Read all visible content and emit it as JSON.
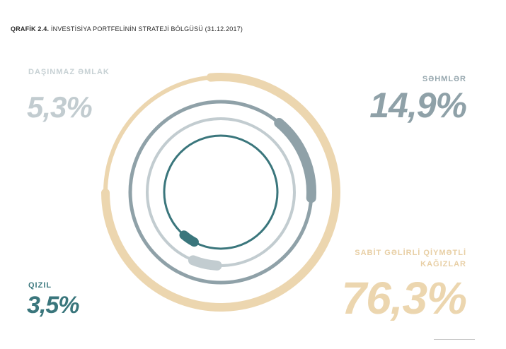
{
  "title": {
    "prefix": "QRAFİK 2.4.",
    "text": "İNVESTİSİYA PORTFELİNİN STRATEJİ BÖLGÜSÜ (31.12.2017)"
  },
  "chart_data": {
    "type": "radial-bar",
    "title": "İNVESTİSİYA PORTFELİNİN STRATEJİ BÖLGÜSÜ (31.12.2017)",
    "series": [
      {
        "name": "SABİT GƏLİRLİ QİYMƏTLİ KAĞIZLAR",
        "label": "76,3%",
        "value": 76.3,
        "color": "#ecd6af"
      },
      {
        "name": "SƏHMLƏR",
        "label": "14,9%",
        "value": 14.9,
        "color": "#8fa1a8"
      },
      {
        "name": "DAŞINMAZ ƏMLAK",
        "label": "5,3%",
        "value": 5.3,
        "color": "#c2ccd0"
      },
      {
        "name": "QIZIL",
        "label": "3,5%",
        "value": 3.5,
        "color": "#3a767c"
      }
    ]
  }
}
